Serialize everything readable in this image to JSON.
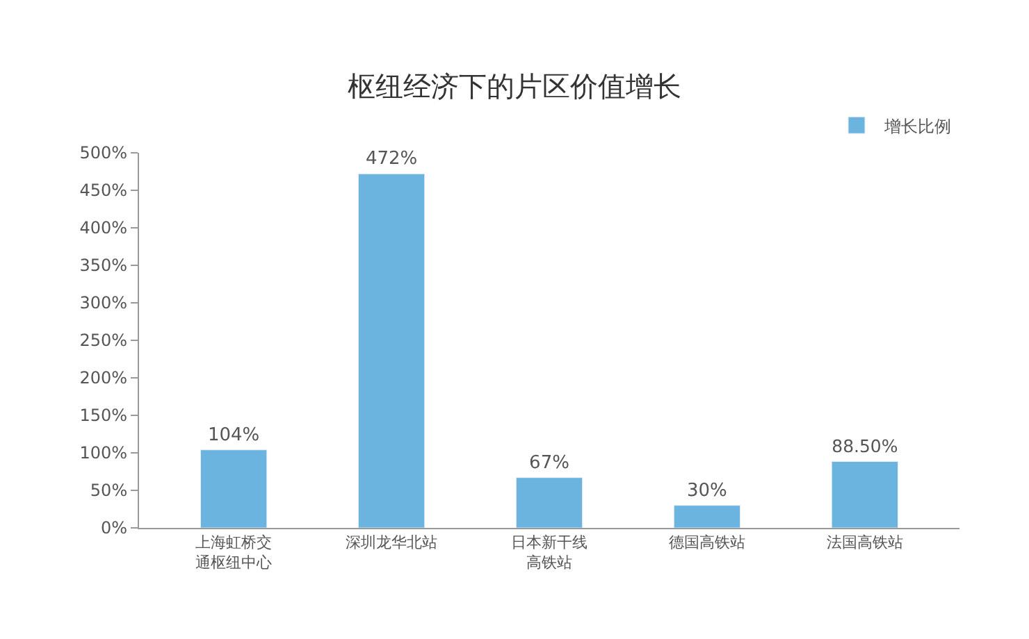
{
  "chart_data": {
    "type": "bar",
    "title": "枢纽经济下的片区价值增长",
    "categories": [
      "上海虹桥交通枢纽中心",
      "深圳龙华北站",
      "日本新干线高铁站",
      "德国高铁站",
      "法国高铁站"
    ],
    "series": [
      {
        "name": "增长比例",
        "color": "#6cb4e0",
        "values": [
          104,
          472,
          67,
          30,
          88.5
        ],
        "value_labels": [
          "104%",
          "472%",
          "67%",
          "30%",
          "88.50%"
        ]
      }
    ],
    "ylim": [
      0,
      500
    ],
    "yticks": [
      {
        "value": 0,
        "label": "0%"
      },
      {
        "value": 50,
        "label": "50%"
      },
      {
        "value": 100,
        "label": "100%"
      },
      {
        "value": 150,
        "label": "150%"
      },
      {
        "value": 200,
        "label": "200%"
      },
      {
        "value": 250,
        "label": "250%"
      },
      {
        "value": 300,
        "label": "300%"
      },
      {
        "value": 350,
        "label": "350%"
      },
      {
        "value": 400,
        "label": "400%"
      },
      {
        "value": 450,
        "label": "450%"
      },
      {
        "value": 500,
        "label": "500%"
      }
    ],
    "legend": "top right"
  }
}
